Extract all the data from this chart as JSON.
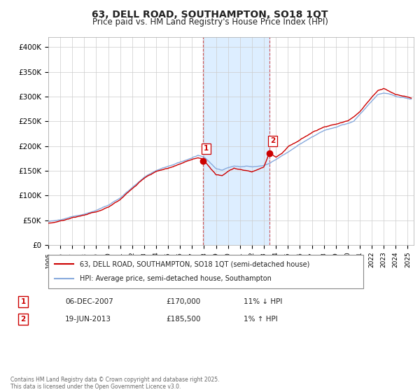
{
  "title": "63, DELL ROAD, SOUTHAMPTON, SO18 1QT",
  "subtitle": "Price paid vs. HM Land Registry's House Price Index (HPI)",
  "ylabel_ticks": [
    "£0",
    "£50K",
    "£100K",
    "£150K",
    "£200K",
    "£250K",
    "£300K",
    "£350K",
    "£400K"
  ],
  "ytick_vals": [
    0,
    50000,
    100000,
    150000,
    200000,
    250000,
    300000,
    350000,
    400000
  ],
  "ylim": [
    0,
    420000
  ],
  "xlim_start": 1995,
  "xlim_end": 2025.5,
  "sale1_date": 2007.92,
  "sale1_price": 170000,
  "sale1_label": "1",
  "sale1_text": "06-DEC-2007",
  "sale1_pct": "11% ↓ HPI",
  "sale2_date": 2013.47,
  "sale2_price": 185500,
  "sale2_label": "2",
  "sale2_text": "19-JUN-2013",
  "sale2_pct": "1% ↑ HPI",
  "legend_house": "63, DELL ROAD, SOUTHAMPTON, SO18 1QT (semi-detached house)",
  "legend_hpi": "HPI: Average price, semi-detached house, Southampton",
  "footnote": "Contains HM Land Registry data © Crown copyright and database right 2025.\nThis data is licensed under the Open Government Licence v3.0.",
  "line_color_house": "#cc0000",
  "line_color_hpi": "#88aadd",
  "shade_color": "#ddeeff",
  "marker_color_house": "#cc0000",
  "grid_color": "#cccccc",
  "bg_color": "#ffffff",
  "title_fontsize": 10,
  "subtitle_fontsize": 8.5,
  "tick_fontsize": 7.5
}
